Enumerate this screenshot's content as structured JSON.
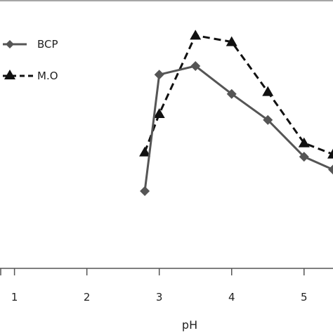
{
  "chart_data": {
    "type": "line",
    "xlabel": "pH",
    "ylabel": "",
    "xlim": [
      0.8,
      5.4
    ],
    "ylim": [
      0,
      10
    ],
    "x_ticks": [
      "1",
      "2",
      "3",
      "4",
      "5"
    ],
    "grid": false,
    "legend": "top-left",
    "series": [
      {
        "name": "BCP",
        "color": "#555555",
        "marker": "diamond",
        "line": "solid",
        "points": [
          {
            "x": 2.8,
            "y": 2.88
          },
          {
            "x": 3.0,
            "y": 7.22
          },
          {
            "x": 3.5,
            "y": 7.54
          },
          {
            "x": 4.0,
            "y": 6.5
          },
          {
            "x": 4.5,
            "y": 5.53
          },
          {
            "x": 5.0,
            "y": 4.16
          },
          {
            "x": 5.4,
            "y": 3.68
          }
        ]
      },
      {
        "name": "M.O",
        "color": "#111111",
        "marker": "triangle",
        "line": "dashed",
        "points": [
          {
            "x": 2.8,
            "y": 4.33
          },
          {
            "x": 3.0,
            "y": 5.76
          },
          {
            "x": 3.5,
            "y": 8.68
          },
          {
            "x": 4.0,
            "y": 8.44
          },
          {
            "x": 4.5,
            "y": 6.58
          },
          {
            "x": 5.0,
            "y": 4.67
          },
          {
            "x": 5.4,
            "y": 4.25
          }
        ]
      }
    ]
  }
}
